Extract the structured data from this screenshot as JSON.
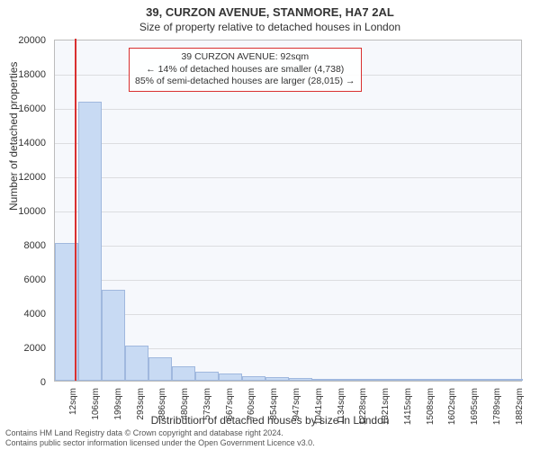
{
  "title": "39, CURZON AVENUE, STANMORE, HA7 2AL",
  "subtitle": "Size of property relative to detached houses in London",
  "ylabel": "Number of detached properties",
  "xlabel": "Distribution of detached houses by size in London",
  "footer_line1": "Contains HM Land Registry data © Crown copyright and database right 2024.",
  "footer_line2": "Contains public sector information licensed under the Open Government Licence v3.0.",
  "chart": {
    "type": "histogram",
    "plot_background": "#f6f8fc",
    "grid_color": "#dcdde0",
    "border_color": "#bcbcbc",
    "bar_fill": "#c8daf3",
    "bar_border": "#a0b8de",
    "marker_color": "#d93030",
    "title_fontsize": 13,
    "subtitle_fontsize": 12,
    "label_fontsize": 12,
    "tick_fontsize": 11,
    "ylim": [
      0,
      20000
    ],
    "ytick_step": 2000,
    "yticks": [
      0,
      2000,
      4000,
      6000,
      8000,
      10000,
      12000,
      14000,
      16000,
      18000,
      20000
    ],
    "xticks": [
      "12sqm",
      "106sqm",
      "199sqm",
      "293sqm",
      "386sqm",
      "480sqm",
      "573sqm",
      "667sqm",
      "760sqm",
      "854sqm",
      "947sqm",
      "1041sqm",
      "1134sqm",
      "1228sqm",
      "1321sqm",
      "1415sqm",
      "1508sqm",
      "1602sqm",
      "1695sqm",
      "1789sqm",
      "1882sqm"
    ],
    "bars": [
      8050,
      16300,
      5300,
      2050,
      1350,
      850,
      550,
      400,
      280,
      200,
      150,
      120,
      100,
      80,
      70,
      60,
      50,
      40,
      30,
      25
    ],
    "marker_x_value": 92,
    "x_range": [
      12,
      1882
    ]
  },
  "info_box": {
    "line1": "39 CURZON AVENUE: 92sqm",
    "line2": "← 14% of detached houses are smaller (4,738)",
    "line3": "85% of semi-detached houses are larger (28,015) →"
  }
}
